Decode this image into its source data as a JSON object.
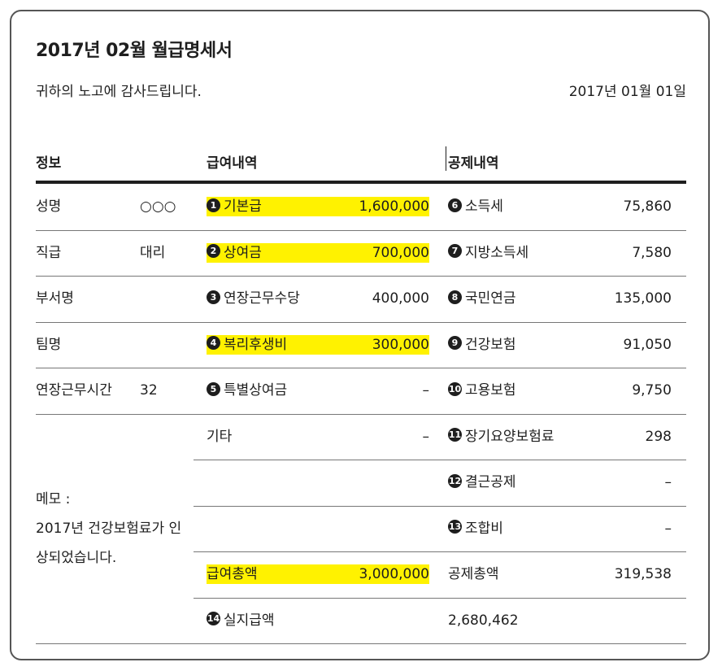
{
  "title": "2017년 02월 월급명세서",
  "greeting": "귀하의 노고에 감사드립니다.",
  "date": "2017년 01월 01일",
  "headers": {
    "info": "정보",
    "pay": "급여내역",
    "deduction": "공제내역"
  },
  "info_rows": [
    {
      "label": "성명",
      "value": "○○○"
    },
    {
      "label": "직급",
      "value": "대리"
    },
    {
      "label": "부서명",
      "value": ""
    },
    {
      "label": "팀명",
      "value": ""
    },
    {
      "label": "연장근무시간",
      "value": "32"
    }
  ],
  "memo": {
    "label": "메모 :",
    "text": "2017년 건강보험료가 인상되었습니다."
  },
  "pay_rows": [
    {
      "num": "1",
      "label": "기본급",
      "amount": "1,600,000",
      "highlight": true
    },
    {
      "num": "2",
      "label": "상여금",
      "amount": "700,000",
      "highlight": true
    },
    {
      "num": "3",
      "label": "연장근무수당",
      "amount": "400,000",
      "highlight": false
    },
    {
      "num": "4",
      "label": "복리후생비",
      "amount": "300,000",
      "highlight": true
    },
    {
      "num": "5",
      "label": "특별상여금",
      "amount": "–",
      "highlight": false
    },
    {
      "num": "",
      "label": "기타",
      "amount": "–",
      "highlight": false
    },
    {
      "num": "",
      "label": "",
      "amount": "",
      "highlight": false
    },
    {
      "num": "",
      "label": "",
      "amount": "",
      "highlight": false
    },
    {
      "num": "",
      "label": "급여총액",
      "amount": "3,000,000",
      "highlight": true
    },
    {
      "num": "14",
      "label": "실지급액",
      "amount": "",
      "highlight": false
    }
  ],
  "deduction_rows": [
    {
      "num": "6",
      "label": "소득세",
      "amount": "75,860"
    },
    {
      "num": "7",
      "label": "지방소득세",
      "amount": "7,580"
    },
    {
      "num": "8",
      "label": "국민연금",
      "amount": "135,000"
    },
    {
      "num": "9",
      "label": "건강보험",
      "amount": "91,050"
    },
    {
      "num": "10",
      "label": "고용보험",
      "amount": "9,750"
    },
    {
      "num": "11",
      "label": "장기요양보험료",
      "amount": "298"
    },
    {
      "num": "12",
      "label": "결근공제",
      "amount": "–"
    },
    {
      "num": "13",
      "label": "조합비",
      "amount": "–"
    },
    {
      "num": "",
      "label": "공제총액",
      "amount": "319,538"
    },
    {
      "num": "",
      "label": "2,680,462",
      "amount": ""
    }
  ]
}
